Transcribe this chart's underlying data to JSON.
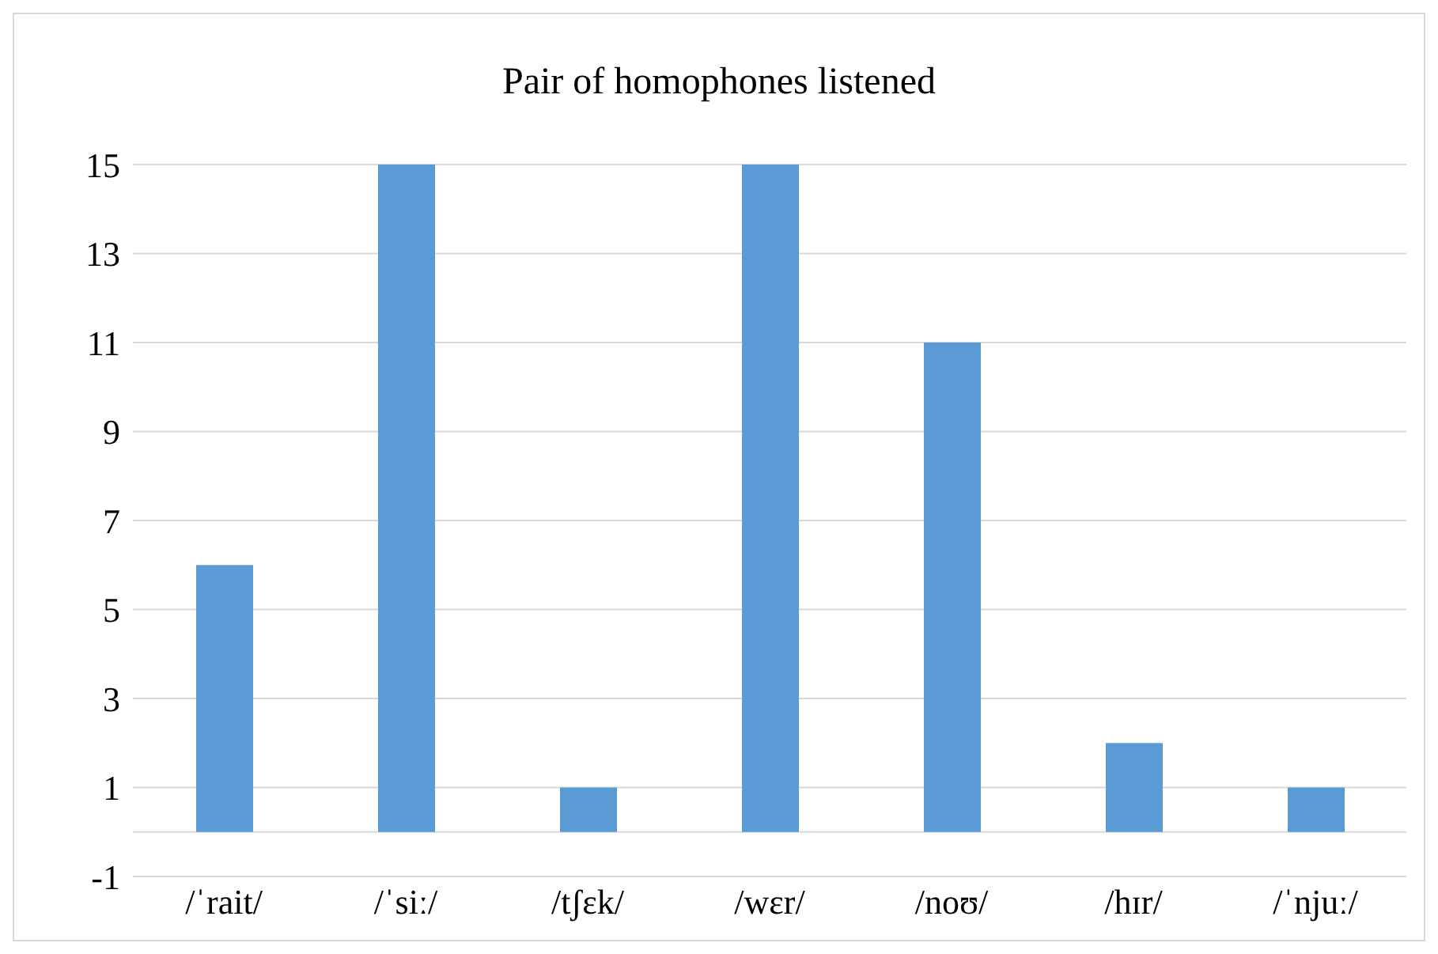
{
  "chart_data": {
    "type": "bar",
    "title": "Pair of homophones listened",
    "categories": [
      "/ˈrait/",
      "/ˈsiː/",
      "/tʃɛk/",
      "/wɛr/",
      "/noʊ/",
      "/hɪr/",
      "/ˈnjuː/"
    ],
    "values": [
      6,
      15,
      1,
      15,
      11,
      2,
      1
    ],
    "color": "#5b9bd5",
    "ylim": [
      -1,
      15
    ],
    "yticks": [
      -1,
      {
        "value": 0,
        "label": null
      },
      1,
      3,
      5,
      7,
      9,
      11,
      13,
      15
    ],
    "grid": "y"
  }
}
